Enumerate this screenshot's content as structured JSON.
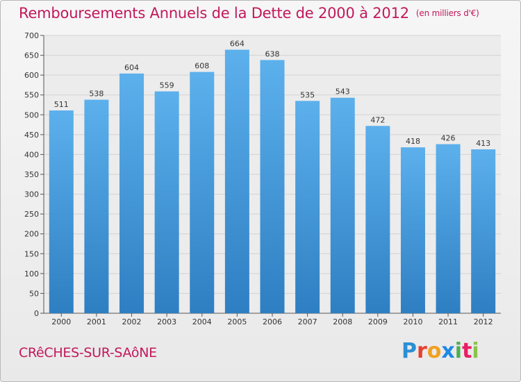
{
  "title": "Remboursements Annuels de la Dette de 2000 à 2012",
  "title_unit": "(en milliers d'€)",
  "city": "CRêCHES-SUR-SAôNE",
  "logo": {
    "letters": [
      "P",
      "r",
      "o",
      "x",
      "i",
      "t",
      "i"
    ],
    "colors": [
      "#2a8fd6",
      "#e8402f",
      "#f0a020",
      "#1e88e5",
      "#4caf50",
      "#e91e63",
      "#8bc34a"
    ]
  },
  "colors": {
    "bar": "#4aa0e0",
    "title": "#c2185b"
  },
  "chart_data": {
    "type": "bar",
    "categories": [
      "2000",
      "2001",
      "2002",
      "2003",
      "2004",
      "2005",
      "2006",
      "2007",
      "2008",
      "2009",
      "2010",
      "2011",
      "2012"
    ],
    "values": [
      511,
      538,
      604,
      559,
      608,
      664,
      638,
      535,
      543,
      472,
      418,
      426,
      413
    ],
    "data_labels": [
      "511",
      "538",
      "604",
      "559",
      "608",
      "664",
      "638",
      "535",
      "543",
      "472",
      "418",
      "426",
      "413"
    ],
    "y_ticks": [
      "0",
      "50",
      "100",
      "150",
      "200",
      "250",
      "300",
      "350",
      "400",
      "450",
      "500",
      "550",
      "600",
      "650",
      "700"
    ],
    "ylim": [
      0,
      700
    ],
    "grid": true
  }
}
